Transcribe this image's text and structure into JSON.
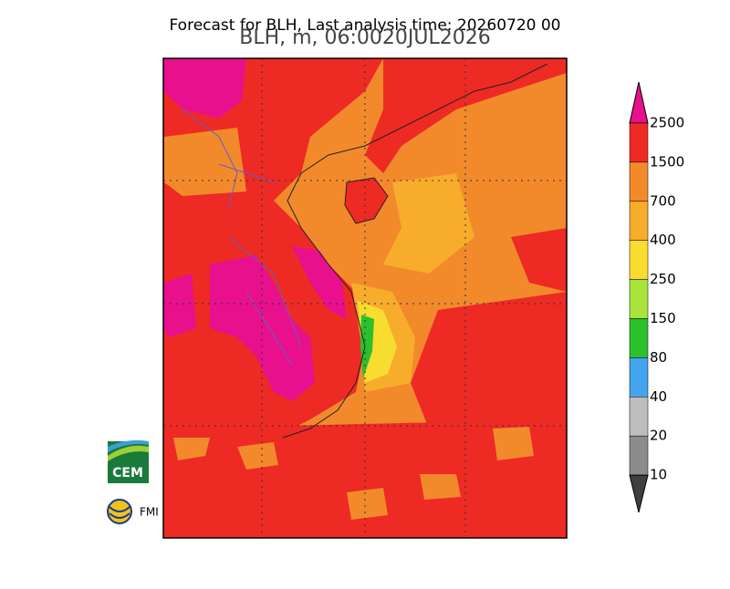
{
  "header": {
    "title": "Forecast for BLH, Last analysis time: 20260720 00",
    "subtitle": "BLH, m, 06:0020JUL2026"
  },
  "colorbar": {
    "levels": [
      2500,
      1500,
      700,
      400,
      250,
      150,
      80,
      40,
      20,
      10
    ],
    "colors": [
      "#ee2a24",
      "#f28a2c",
      "#f8ac2c",
      "#f8dc30",
      "#a8e43c",
      "#2cc02c",
      "#44a4ee",
      "#bdbdbd",
      "#8c8c8c"
    ],
    "over_color": "#e8108c",
    "under_color": "#404040"
  },
  "logos": {
    "cem": "CEM",
    "fmi": "FMI"
  }
}
